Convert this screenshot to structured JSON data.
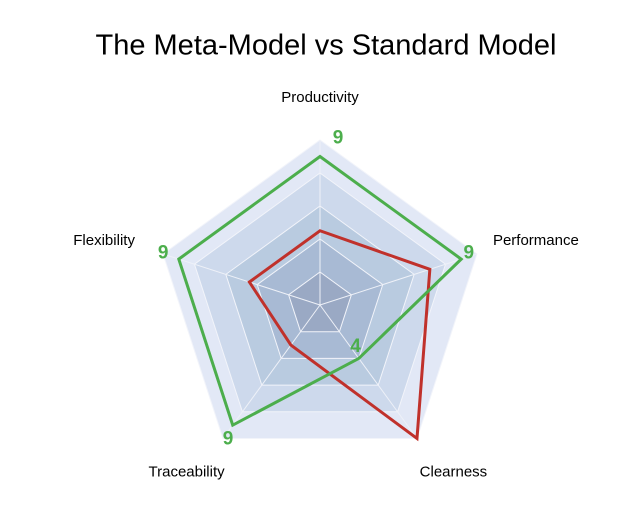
{
  "chart_data": {
    "type": "radar",
    "title": "The Meta-Model vs Standard Model",
    "categories": [
      "Productivity",
      "Performance",
      "Clearness",
      "Traceability",
      "Flexibility"
    ],
    "rlim": [
      0,
      10
    ],
    "rticks": [
      2,
      4,
      6,
      8,
      10
    ],
    "grid": true,
    "series": [
      {
        "color": "#c0312b",
        "values": [
          4.5,
          7,
          10,
          3,
          4.5
        ]
      },
      {
        "color": "#4cae4c",
        "values": [
          9,
          9,
          4,
          9,
          9
        ],
        "show_value_labels": true
      }
    ]
  }
}
